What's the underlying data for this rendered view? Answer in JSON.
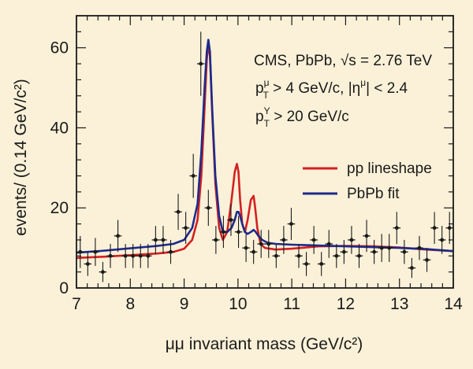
{
  "chart_data": {
    "type": "scatter",
    "title": "",
    "xlabel": "μμ invariant mass (GeV/c²)",
    "ylabel": "events/ (0.14 GeV/c²)",
    "xlim": [
      7,
      14
    ],
    "ylim": [
      0,
      68
    ],
    "xticks": [
      7,
      8,
      9,
      10,
      11,
      12,
      13,
      14
    ],
    "yticks": [
      0,
      20,
      40,
      60
    ],
    "grid": false,
    "annotations": [
      {
        "id": "experiment",
        "main": "CMS, PbPb, √s = 2.76 TeV"
      },
      {
        "id": "cut1",
        "p": "p",
        "sup": "μ",
        "sub": "T",
        "rest": " > 4 GeV/c, |η",
        "sup2": "μ",
        "rest2": "| < 2.4"
      },
      {
        "id": "cut2",
        "p": "p",
        "sup": "Υ",
        "sub": "T",
        "rest": " > 20 GeV/c"
      }
    ],
    "legend": {
      "position": "right",
      "entries": [
        {
          "label": "pp lineshape",
          "color": "#d42020"
        },
        {
          "label": "PbPb fit",
          "color": "#1e2a8c"
        }
      ]
    },
    "data_points": {
      "name": "PbPb data",
      "color": "#1a1a1a",
      "xerr": 0.07,
      "x": [
        7.07,
        7.21,
        7.35,
        7.49,
        7.63,
        7.77,
        7.91,
        8.05,
        8.19,
        8.33,
        8.47,
        8.61,
        8.75,
        8.89,
        9.03,
        9.17,
        9.31,
        9.45,
        9.59,
        9.73,
        9.87,
        10.01,
        10.15,
        10.29,
        10.43,
        10.57,
        10.71,
        10.85,
        10.99,
        11.13,
        11.27,
        11.41,
        11.55,
        11.69,
        11.83,
        11.97,
        12.11,
        12.25,
        12.39,
        12.53,
        12.67,
        12.81,
        12.95,
        13.09,
        13.23,
        13.37,
        13.51,
        13.65,
        13.79,
        13.93
      ],
      "y": [
        9,
        6,
        9,
        4,
        8,
        13,
        8,
        8,
        8,
        8,
        12,
        12,
        9,
        19,
        15,
        28,
        56,
        20,
        12,
        14,
        17,
        14,
        10,
        9,
        11,
        11,
        8,
        12,
        16,
        8,
        6,
        12,
        6,
        11,
        8,
        9,
        12,
        8,
        13,
        9,
        10,
        10,
        15,
        9,
        5,
        10,
        7,
        15,
        12,
        15
      ],
      "yerr": [
        4,
        3,
        3.5,
        2.5,
        3,
        4,
        3,
        3,
        3,
        3,
        3.5,
        3.5,
        3,
        4.5,
        4,
        5.5,
        8,
        4.5,
        3.5,
        4,
        4,
        4,
        3.5,
        3,
        3.5,
        3.5,
        3,
        3.5,
        4,
        3,
        3,
        3.5,
        3,
        3.5,
        3,
        3,
        3.5,
        3,
        4,
        3,
        3.5,
        3.5,
        4,
        3,
        2.5,
        3,
        3,
        4,
        3.5,
        4
      ]
    },
    "series": [
      {
        "name": "pp lineshape",
        "color": "#d42020",
        "x": [
          7,
          7.5,
          8,
          8.5,
          8.8,
          9.0,
          9.15,
          9.25,
          9.32,
          9.38,
          9.42,
          9.45,
          9.48,
          9.52,
          9.58,
          9.65,
          9.72,
          9.8,
          9.88,
          9.94,
          9.98,
          10.01,
          10.04,
          10.08,
          10.13,
          10.18,
          10.24,
          10.29,
          10.32,
          10.36,
          10.42,
          10.5,
          10.7,
          11,
          11.5,
          12,
          12.5,
          13,
          13.5,
          14
        ],
        "y": [
          7.5,
          7.8,
          8.2,
          8.6,
          9.0,
          9.8,
          12,
          17,
          28,
          45,
          57,
          61,
          58,
          44,
          26,
          15,
          12,
          14,
          22,
          29,
          31,
          29,
          22,
          16,
          14,
          17,
          22,
          23,
          20,
          15,
          11,
          10,
          9.6,
          9.8,
          10.4,
          10.5,
          10.4,
          10.1,
          9.6,
          9.2
        ]
      },
      {
        "name": "PbPb fit",
        "color": "#1e2a8c",
        "x": [
          7,
          7.5,
          8,
          8.5,
          8.8,
          9.0,
          9.15,
          9.25,
          9.32,
          9.38,
          9.42,
          9.45,
          9.48,
          9.52,
          9.58,
          9.65,
          9.72,
          9.8,
          9.88,
          9.94,
          9.98,
          10.01,
          10.04,
          10.08,
          10.13,
          10.18,
          10.24,
          10.29,
          10.33,
          10.38,
          10.45,
          10.55,
          10.7,
          11,
          11.5,
          12,
          12.5,
          13,
          13.5,
          14
        ],
        "y": [
          8.8,
          9.3,
          9.9,
          10.5,
          11.0,
          12.0,
          15,
          21,
          34,
          50,
          59,
          62,
          59,
          45,
          28,
          18,
          14,
          14,
          15,
          17,
          19,
          19,
          18,
          16,
          14,
          13.5,
          14,
          14.5,
          14,
          13,
          12,
          11.3,
          11,
          10.8,
          10.6,
          10.4,
          10.2,
          10.0,
          9.7,
          9.2
        ]
      }
    ]
  }
}
